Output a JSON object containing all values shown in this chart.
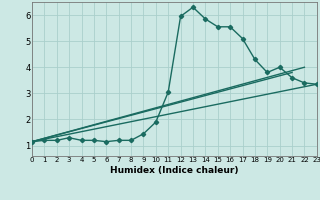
{
  "title": "",
  "xlabel": "Humidex (Indice chaleur)",
  "bg_color": "#cce8e4",
  "grid_color": "#aacfcc",
  "line_color": "#1a6b60",
  "xlim": [
    0,
    23
  ],
  "ylim": [
    0.6,
    6.5
  ],
  "xticks": [
    0,
    1,
    2,
    3,
    4,
    5,
    6,
    7,
    8,
    9,
    10,
    11,
    12,
    13,
    14,
    15,
    16,
    17,
    18,
    19,
    20,
    21,
    22,
    23
  ],
  "yticks": [
    1,
    2,
    3,
    4,
    5,
    6
  ],
  "lines": [
    {
      "x": [
        0,
        1,
        2,
        3,
        4,
        5,
        6,
        7,
        8,
        9,
        10,
        11,
        12,
        13,
        14,
        15,
        16,
        17,
        18,
        19,
        20,
        21,
        22,
        23
      ],
      "y": [
        1.15,
        1.2,
        1.2,
        1.3,
        1.2,
        1.2,
        1.15,
        1.2,
        1.2,
        1.45,
        1.9,
        3.05,
        5.95,
        6.3,
        5.85,
        5.55,
        5.55,
        5.1,
        4.3,
        3.8,
        4.0,
        3.6,
        3.4,
        3.35
      ],
      "has_markers": true
    },
    {
      "x": [
        0,
        23
      ],
      "y": [
        1.15,
        3.35
      ],
      "has_markers": false
    },
    {
      "x": [
        0,
        21
      ],
      "y": [
        1.15,
        3.8
      ],
      "has_markers": false
    },
    {
      "x": [
        0,
        22
      ],
      "y": [
        1.15,
        4.0
      ],
      "has_markers": false
    }
  ],
  "marker": "D",
  "markersize": 2.2,
  "linewidth": 1.0
}
